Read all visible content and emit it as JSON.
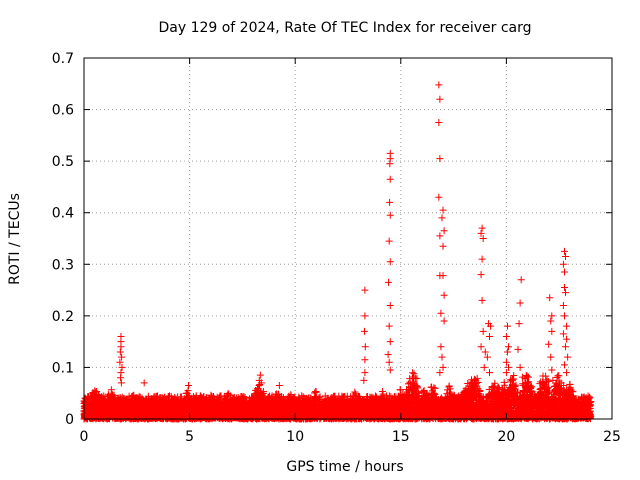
{
  "chart_data": {
    "type": "scatter",
    "title": "Day 129 of 2024, Rate Of TEC Index for receiver carg",
    "xlabel": "GPS time / hours",
    "ylabel": "ROTI / TECUs",
    "xlim": [
      0,
      25
    ],
    "ylim": [
      0,
      0.7
    ],
    "xticks": [
      "0",
      "5",
      "10",
      "15",
      "20",
      "25"
    ],
    "yticks": [
      "0",
      "0.1",
      "0.2",
      "0.3",
      "0.4",
      "0.5",
      "0.6",
      "0.7"
    ],
    "grid": true,
    "marker": "+",
    "color": "#ff0000",
    "series": [
      {
        "name": "ROTI",
        "points": [
          [
            1.75,
            0.16
          ],
          [
            1.75,
            0.15
          ],
          [
            1.75,
            0.14
          ],
          [
            1.72,
            0.13
          ],
          [
            1.78,
            0.12
          ],
          [
            1.7,
            0.11
          ],
          [
            1.8,
            0.1
          ],
          [
            1.75,
            0.09
          ],
          [
            1.73,
            0.08
          ],
          [
            1.77,
            0.07
          ],
          [
            2.85,
            0.07
          ],
          [
            4.95,
            0.065
          ],
          [
            8.35,
            0.085
          ],
          [
            8.3,
            0.075
          ],
          [
            8.4,
            0.07
          ],
          [
            9.25,
            0.065
          ],
          [
            13.3,
            0.25
          ],
          [
            13.3,
            0.2
          ],
          [
            13.28,
            0.17
          ],
          [
            13.32,
            0.14
          ],
          [
            13.3,
            0.115
          ],
          [
            13.3,
            0.09
          ],
          [
            13.25,
            0.075
          ],
          [
            14.5,
            0.515
          ],
          [
            14.5,
            0.505
          ],
          [
            14.48,
            0.495
          ],
          [
            14.5,
            0.465
          ],
          [
            14.47,
            0.42
          ],
          [
            14.5,
            0.395
          ],
          [
            14.45,
            0.345
          ],
          [
            14.5,
            0.305
          ],
          [
            14.42,
            0.265
          ],
          [
            14.5,
            0.22
          ],
          [
            14.45,
            0.18
          ],
          [
            14.5,
            0.15
          ],
          [
            14.4,
            0.125
          ],
          [
            14.45,
            0.11
          ],
          [
            14.5,
            0.095
          ],
          [
            16.8,
            0.648
          ],
          [
            16.85,
            0.62
          ],
          [
            16.8,
            0.575
          ],
          [
            16.85,
            0.505
          ],
          [
            16.8,
            0.43
          ],
          [
            17.0,
            0.405
          ],
          [
            16.95,
            0.39
          ],
          [
            17.05,
            0.365
          ],
          [
            16.85,
            0.355
          ],
          [
            17.0,
            0.335
          ],
          [
            16.85,
            0.278
          ],
          [
            17.0,
            0.278
          ],
          [
            17.05,
            0.24
          ],
          [
            16.9,
            0.205
          ],
          [
            17.05,
            0.19
          ],
          [
            16.9,
            0.14
          ],
          [
            16.95,
            0.12
          ],
          [
            17.0,
            0.1
          ],
          [
            16.85,
            0.09
          ],
          [
            18.85,
            0.37
          ],
          [
            18.8,
            0.36
          ],
          [
            18.9,
            0.35
          ],
          [
            18.85,
            0.31
          ],
          [
            18.8,
            0.28
          ],
          [
            18.85,
            0.23
          ],
          [
            19.15,
            0.185
          ],
          [
            19.25,
            0.18
          ],
          [
            18.9,
            0.17
          ],
          [
            19.2,
            0.16
          ],
          [
            18.8,
            0.14
          ],
          [
            19.0,
            0.13
          ],
          [
            19.1,
            0.12
          ],
          [
            18.95,
            0.1
          ],
          [
            19.2,
            0.09
          ],
          [
            20.05,
            0.18
          ],
          [
            20.0,
            0.16
          ],
          [
            20.1,
            0.14
          ],
          [
            20.05,
            0.13
          ],
          [
            20.0,
            0.11
          ],
          [
            20.1,
            0.1
          ],
          [
            20.0,
            0.09
          ],
          [
            20.7,
            0.27
          ],
          [
            20.65,
            0.225
          ],
          [
            20.6,
            0.185
          ],
          [
            20.55,
            0.135
          ],
          [
            20.65,
            0.1
          ],
          [
            22.05,
            0.235
          ],
          [
            22.15,
            0.2
          ],
          [
            22.1,
            0.19
          ],
          [
            22.15,
            0.17
          ],
          [
            22.0,
            0.145
          ],
          [
            22.1,
            0.12
          ],
          [
            22.15,
            0.095
          ],
          [
            22.2,
            0.075
          ],
          [
            22.75,
            0.325
          ],
          [
            22.8,
            0.315
          ],
          [
            22.7,
            0.3
          ],
          [
            22.75,
            0.285
          ],
          [
            22.75,
            0.255
          ],
          [
            22.8,
            0.245
          ],
          [
            22.7,
            0.22
          ],
          [
            22.75,
            0.2
          ],
          [
            22.85,
            0.18
          ],
          [
            22.7,
            0.165
          ],
          [
            22.85,
            0.155
          ],
          [
            22.8,
            0.14
          ],
          [
            22.9,
            0.12
          ],
          [
            22.75,
            0.105
          ],
          [
            22.85,
            0.09
          ]
        ],
        "baseline": {
          "x_range": [
            0,
            24
          ],
          "typical_range": [
            0.0,
            0.045
          ],
          "bumps": [
            [
              0.5,
              0.062
            ],
            [
              0.8,
              0.058
            ],
            [
              1.3,
              0.06
            ],
            [
              2.4,
              0.052
            ],
            [
              3.5,
              0.05
            ],
            [
              4.0,
              0.048
            ],
            [
              4.9,
              0.058
            ],
            [
              5.5,
              0.045
            ],
            [
              6.0,
              0.05
            ],
            [
              6.8,
              0.052
            ],
            [
              7.2,
              0.045
            ],
            [
              8.3,
              0.07
            ],
            [
              9.2,
              0.062
            ],
            [
              9.8,
              0.052
            ],
            [
              10.5,
              0.05
            ],
            [
              11.0,
              0.058
            ],
            [
              11.8,
              0.05
            ],
            [
              12.2,
              0.045
            ],
            [
              12.8,
              0.055
            ],
            [
              13.7,
              0.05
            ],
            [
              14.1,
              0.06
            ],
            [
              15.0,
              0.06
            ],
            [
              15.5,
              0.085
            ],
            [
              15.6,
              0.095
            ],
            [
              16.1,
              0.06
            ],
            [
              16.5,
              0.07
            ],
            [
              17.3,
              0.065
            ],
            [
              17.9,
              0.06
            ],
            [
              18.2,
              0.075
            ],
            [
              18.5,
              0.09
            ],
            [
              19.4,
              0.075
            ],
            [
              19.8,
              0.08
            ],
            [
              20.3,
              0.09
            ],
            [
              21.0,
              0.1
            ],
            [
              21.4,
              0.06
            ],
            [
              21.8,
              0.09
            ],
            [
              22.5,
              0.09
            ],
            [
              23.0,
              0.07
            ],
            [
              23.5,
              0.04
            ]
          ]
        }
      }
    ]
  }
}
